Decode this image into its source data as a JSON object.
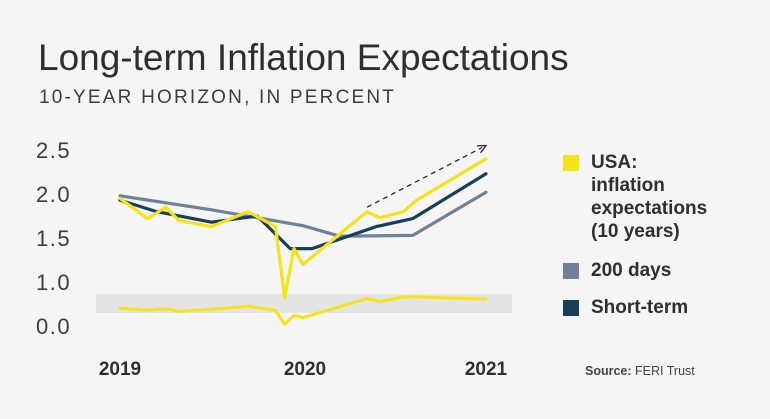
{
  "chart_data": {
    "type": "line",
    "title": "Long-term Inflation Expectations",
    "subtitle": "10-YEAR HORIZON, IN PERCENT",
    "x_ticks": [
      "2019",
      "2020",
      "2021"
    ],
    "y_ticks": [
      "2.5",
      "2.0",
      "1.5",
      "1.0",
      "0.0"
    ],
    "ylim": [
      0.0,
      2.5
    ],
    "axis_break": "between 0.0 and 1.0",
    "series": [
      {
        "name": "USA:\ninflation\nexpectations\n(10 years)",
        "color": "#f7e216",
        "x": [
          2019.0,
          2019.15,
          2019.25,
          2019.32,
          2019.5,
          2019.7,
          2019.85,
          2019.9,
          2019.95,
          2020.0,
          2020.35,
          2020.42,
          2020.55,
          2020.62,
          2021.0
        ],
        "y": [
          1.95,
          1.72,
          1.85,
          1.7,
          1.63,
          1.8,
          1.63,
          0.82,
          1.38,
          1.2,
          1.8,
          1.73,
          1.8,
          1.93,
          2.4
        ],
        "lower_panel_y": [
          0.32,
          0.28,
          0.31,
          0.26,
          0.3,
          0.35,
          0.28,
          0.03,
          0.19,
          0.15,
          0.49,
          0.44,
          0.52,
          0.52,
          0.48
        ]
      },
      {
        "name": "200 days",
        "color": "#6f8196",
        "x": [
          2019.0,
          2019.5,
          2020.0,
          2020.2,
          2020.6,
          2021.0
        ],
        "y": [
          1.98,
          1.82,
          1.64,
          1.52,
          1.53,
          2.02
        ]
      },
      {
        "name": "Short-term",
        "color": "#163f58",
        "x": [
          2019.0,
          2019.2,
          2019.5,
          2019.75,
          2019.93,
          2020.05,
          2020.4,
          2020.6,
          2021.0
        ],
        "y": [
          1.93,
          1.8,
          1.68,
          1.75,
          1.38,
          1.38,
          1.63,
          1.72,
          2.23
        ]
      }
    ],
    "trend_arrow": {
      "from": [
        2020.35,
        1.85
      ],
      "to": [
        2021.0,
        2.55
      ]
    },
    "grid": false
  },
  "legend": {
    "usa": "USA:\ninflation\nexpectations\n(10 years)",
    "days200": "200 days",
    "short": "Short-term"
  },
  "source": {
    "label": "Source:",
    "text": " FERI Trust"
  }
}
